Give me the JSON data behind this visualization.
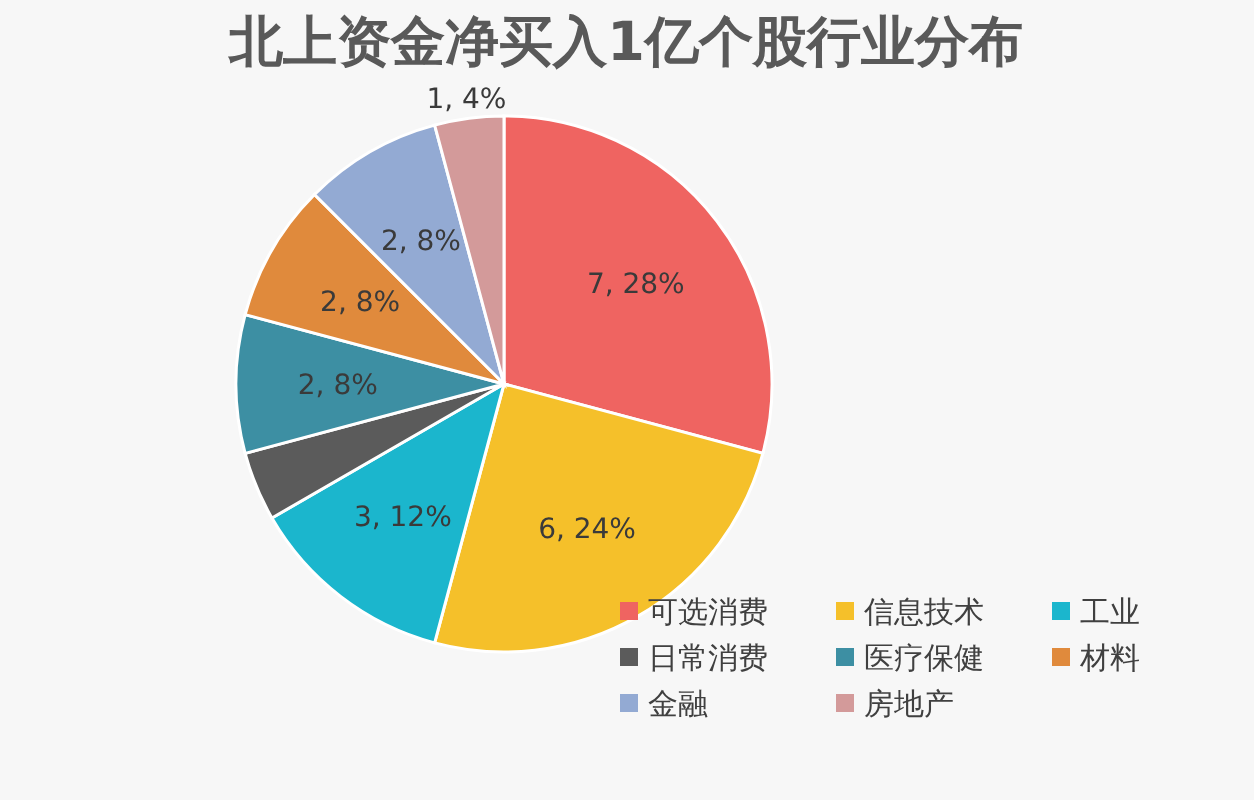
{
  "chart_data": {
    "type": "pie",
    "title": "北上资金净买入1亿个股行业分布",
    "categories": [
      "可选消费",
      "信息技术",
      "工业",
      "日常消费",
      "医疗保健",
      "材料",
      "金融",
      "房地产"
    ],
    "values": [
      7,
      6,
      3,
      1,
      2,
      2,
      2,
      1
    ],
    "value_labels": [
      "7, 28%",
      "6, 24%",
      "3, 12%",
      null,
      "2, 8%",
      "2, 8%",
      "2, 8%",
      "1, 4%"
    ],
    "colors": [
      "#ef6461",
      "#f5c02a",
      "#1bb6cd",
      "#5b5b5b",
      "#3d8fa3",
      "#e08a3c",
      "#93aad3",
      "#d39a9a"
    ],
    "legend": "bottom right"
  }
}
